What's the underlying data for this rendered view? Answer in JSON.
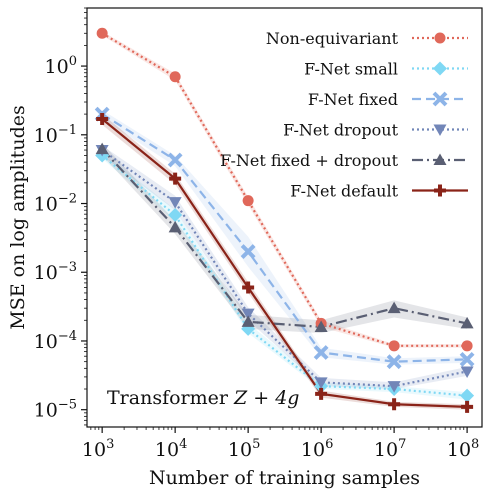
{
  "chart_data": {
    "type": "line",
    "xlabel": "Number of training samples",
    "ylabel": "MSE on log amplitudes",
    "xscale": "log",
    "yscale": "log",
    "x": [
      1000,
      10000,
      100000,
      1000000,
      10000000,
      100000000
    ],
    "xticks": [
      {
        "value": 1000,
        "base": "10",
        "exp": "3"
      },
      {
        "value": 10000,
        "base": "10",
        "exp": "4"
      },
      {
        "value": 100000,
        "base": "10",
        "exp": "5"
      },
      {
        "value": 1000000,
        "base": "10",
        "exp": "6"
      },
      {
        "value": 10000000,
        "base": "10",
        "exp": "7"
      },
      {
        "value": 100000000,
        "base": "10",
        "exp": "8"
      }
    ],
    "yticks": [
      {
        "value": 1,
        "base": "10",
        "exp": "0"
      },
      {
        "value": 0.1,
        "base": "10",
        "exp": "−1"
      },
      {
        "value": 0.01,
        "base": "10",
        "exp": "−2"
      },
      {
        "value": 0.001,
        "base": "10",
        "exp": "−3"
      },
      {
        "value": 0.0001,
        "base": "10",
        "exp": "−4"
      },
      {
        "value": 1e-05,
        "base": "10",
        "exp": "−5"
      }
    ],
    "xlim": [
      620,
      160000000
    ],
    "ylim": [
      5.6e-06,
      7.0
    ],
    "annotation": {
      "text": "Transformer ",
      "math": "Z + 4g"
    },
    "legend_position": "upper right",
    "grid": false,
    "series": [
      {
        "name": "Non-equivariant",
        "color": "#e0685a",
        "dash": "2,3",
        "marker": "circle",
        "values": [
          3.0,
          0.7,
          0.011,
          0.00018,
          8.5e-05,
          8.5e-05
        ],
        "band_low": [
          2.8,
          0.62,
          0.0095,
          0.00016,
          8e-05,
          8e-05
        ],
        "band_high": [
          3.2,
          0.78,
          0.0125,
          0.0002,
          9e-05,
          9e-05
        ]
      },
      {
        "name": "F-Net small",
        "color": "#7fd8f4",
        "dash": "2,3",
        "marker": "diamond",
        "values": [
          0.05,
          0.0068,
          0.00015,
          2.2e-05,
          2e-05,
          1.6e-05
        ],
        "band_low": [
          0.045,
          0.0055,
          0.00013,
          2e-05,
          1.8e-05,
          1.4e-05
        ],
        "band_high": [
          0.056,
          0.0082,
          0.00018,
          2.5e-05,
          2.2e-05,
          1.8e-05
        ]
      },
      {
        "name": "F-Net fixed",
        "color": "#8db4e8",
        "dash": "9,5",
        "marker": "x",
        "values": [
          0.2,
          0.043,
          0.002,
          6.8e-05,
          5e-05,
          5.4e-05
        ],
        "band_low": [
          0.17,
          0.035,
          0.0012,
          5.8e-05,
          4.5e-05,
          4.8e-05
        ],
        "band_high": [
          0.23,
          0.05,
          0.0033,
          8e-05,
          5.6e-05,
          6e-05
        ]
      },
      {
        "name": "F-Net dropout",
        "color": "#7286b8",
        "dash": "2,3",
        "marker": "tri-down",
        "values": [
          0.06,
          0.0105,
          0.00025,
          2.5e-05,
          2.2e-05,
          3.6e-05
        ],
        "band_low": [
          0.05,
          0.008,
          0.0002,
          2.2e-05,
          2e-05,
          3.1e-05
        ],
        "band_high": [
          0.07,
          0.013,
          0.00031,
          2.9e-05,
          2.5e-05,
          4.2e-05
        ]
      },
      {
        "name": "F-Net fixed + dropout",
        "color": "#5a5f73",
        "dash": "11,4,2,4",
        "marker": "tri-up",
        "values": [
          0.062,
          0.0045,
          0.00019,
          0.00016,
          0.0003,
          0.00018
        ],
        "band_low": [
          0.05,
          0.0036,
          0.00015,
          0.00013,
          0.00022,
          0.00015
        ],
        "band_high": [
          0.075,
          0.0056,
          0.00024,
          0.0002,
          0.00039,
          0.00022
        ]
      },
      {
        "name": "F-Net default",
        "color": "#8a2318",
        "dash": "",
        "marker": "plus",
        "values": [
          0.17,
          0.023,
          0.0006,
          1.7e-05,
          1.2e-05,
          1.1e-05
        ],
        "band_low": [
          0.14,
          0.019,
          0.0005,
          1.5e-05,
          1.1e-05,
          1e-05
        ],
        "band_high": [
          0.2,
          0.027,
          0.00072,
          1.9e-05,
          1.3e-05,
          1.2e-05
        ]
      }
    ]
  }
}
